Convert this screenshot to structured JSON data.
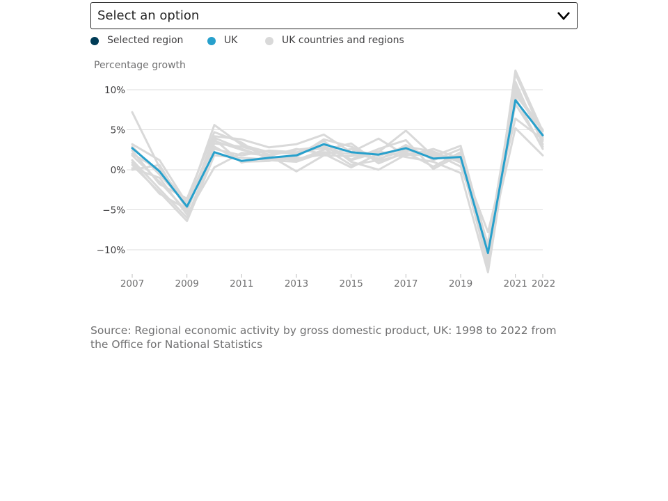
{
  "select": {
    "label": "Select an option"
  },
  "legend": [
    {
      "label": "Selected region",
      "color": "#003c57"
    },
    {
      "label": "UK",
      "color": "#27a0cc"
    },
    {
      "label": "UK countries and regions",
      "color": "#d9d9d9"
    }
  ],
  "source": "Source: Regional economic activity by gross domestic product, UK: 1998 to 2022 from the Office for National Statistics",
  "chart_data": {
    "type": "line",
    "ylabel": "Percentage growth",
    "x": [
      2007,
      2008,
      2009,
      2010,
      2011,
      2012,
      2013,
      2014,
      2015,
      2016,
      2017,
      2018,
      2019,
      2020,
      2021,
      2022
    ],
    "xticks": [
      "2007",
      "2009",
      "2011",
      "2013",
      "2015",
      "2017",
      "2019",
      "2021",
      "2022"
    ],
    "yticks": [
      "10%",
      "5%",
      "0%",
      "−5%",
      "−10%"
    ],
    "ylim": [
      -13,
      11
    ],
    "grid": true,
    "colors": {
      "uk": "#27a0cc",
      "regions": "#d9d9d9",
      "selected": "#003c57"
    },
    "series": [
      {
        "name": "UK",
        "values": [
          2.7,
          -0.2,
          -4.6,
          2.2,
          1.1,
          1.5,
          1.8,
          3.2,
          2.2,
          1.9,
          2.7,
          1.4,
          1.6,
          -10.4,
          8.7,
          4.3
        ]
      }
    ],
    "background_series": [
      [
        7.2,
        0.3,
        -4.8,
        4.2,
        3.8,
        2.8,
        3.2,
        4.4,
        2.2,
        3.9,
        1.8,
        2.6,
        1.4,
        -12.0,
        12.4,
        4.8
      ],
      [
        3.2,
        1.2,
        -4.2,
        5.6,
        3.1,
        2.2,
        2.0,
        3.0,
        1.2,
        2.2,
        4.9,
        1.7,
        3.0,
        -9.5,
        11.0,
        3.2
      ],
      [
        1.8,
        -1.5,
        -5.2,
        3.6,
        2.5,
        1.6,
        1.2,
        2.5,
        3.3,
        0.8,
        2.2,
        0.4,
        2.2,
        -11.0,
        9.8,
        5.0
      ],
      [
        0.6,
        -2.8,
        -6.4,
        1.8,
        1.5,
        1.3,
        1.4,
        1.9,
        2.6,
        1.7,
        2.9,
        2.3,
        0.9,
        -10.8,
        10.6,
        3.6
      ],
      [
        0.2,
        -1.0,
        -5.6,
        0.3,
        2.1,
        1.8,
        -0.2,
        1.8,
        1.7,
        2.3,
        1.6,
        1.0,
        -0.4,
        -12.8,
        9.0,
        2.6
      ],
      [
        2.0,
        0.0,
        -4.0,
        2.9,
        1.0,
        1.1,
        1.9,
        3.6,
        1.0,
        0.0,
        1.9,
        1.8,
        1.2,
        -7.8,
        6.4,
        3.8
      ],
      [
        0.9,
        -3.0,
        -4.9,
        3.3,
        2.9,
        1.9,
        2.5,
        2.9,
        1.3,
        2.6,
        3.7,
        0.1,
        1.9,
        -9.8,
        5.2,
        1.8
      ],
      [
        2.4,
        -1.8,
        -3.6,
        4.7,
        3.4,
        1.2,
        1.0,
        2.2,
        2.0,
        1.4,
        2.4,
        2.0,
        1.3,
        -11.6,
        12.0,
        4.4
      ],
      [
        1.2,
        -2.4,
        -6.0,
        2.6,
        1.8,
        2.4,
        2.2,
        2.7,
        0.6,
        1.2,
        3.1,
        1.2,
        2.6,
        -10.1,
        8.2,
        2.9
      ],
      [
        0.0,
        0.6,
        -5.0,
        4.0,
        2.6,
        1.5,
        1.6,
        3.8,
        2.9,
        1.1,
        2.0,
        2.1,
        0.4,
        -9.2,
        10.1,
        4.0
      ],
      [
        2.9,
        -0.6,
        -4.4,
        3.8,
        0.9,
        1.7,
        2.6,
        2.0,
        0.3,
        2.0,
        2.6,
        1.5,
        1.7,
        -11.2,
        9.4,
        4.9
      ]
    ]
  }
}
